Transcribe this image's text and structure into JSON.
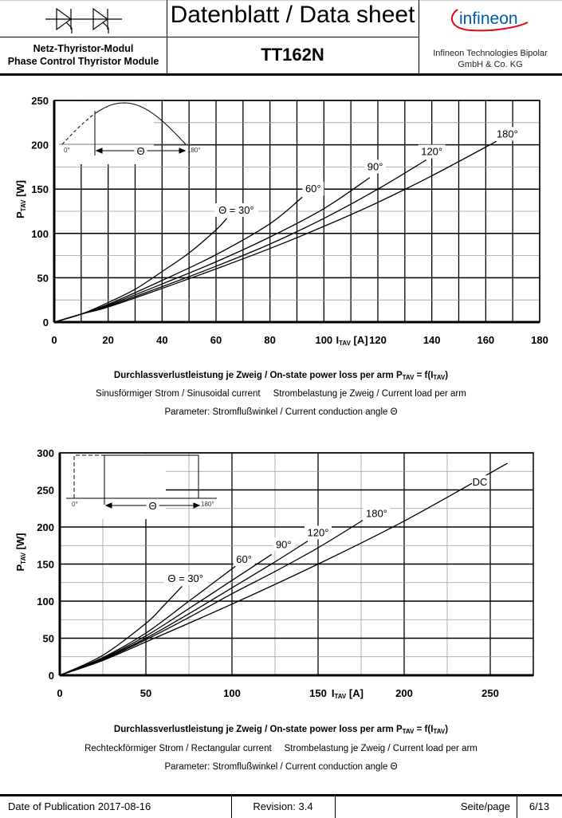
{
  "header": {
    "title": "Datenblatt / Data sheet",
    "subtitle_de": "Netz-Thyristor-Modul",
    "subtitle_en": "Phase Control Thyristor Module",
    "part_number": "TT162N",
    "company_line1": "Infineon Technologies Bipolar",
    "company_line2": "GmbH & Co. KG",
    "logo_text": "infineon",
    "logo_color": "#005ba8",
    "logo_swoosh_color": "#e30613",
    "symbol_icon": "dual-thyristor-symbol"
  },
  "chart_data": [
    {
      "type": "line",
      "title": "",
      "xlabel": {
        "main": "I",
        "sub": "TAV",
        "unit": " [A]"
      },
      "ylabel": {
        "main": "P",
        "sub": "TAV",
        "unit": " [W]"
      },
      "xlim": [
        0,
        180
      ],
      "ylim": [
        0,
        250
      ],
      "x_ticks": [
        "0",
        "20",
        "40",
        "60",
        "80",
        "100",
        "120",
        "140",
        "160",
        "180"
      ],
      "y_ticks": [
        "0",
        "50",
        "100",
        "150",
        "200",
        "250"
      ],
      "grid": true,
      "inset": {
        "waveform": "half-sine",
        "start_label": "0°",
        "end_label": "180°",
        "angle_label": "Θ"
      },
      "series": [
        {
          "name": "Θ = 30°",
          "points": [
            [
              0,
              0
            ],
            [
              10,
              9
            ],
            [
              20,
              22
            ],
            [
              30,
              37
            ],
            [
              40,
              57
            ],
            [
              50,
              78
            ],
            [
              60,
              104
            ],
            [
              64,
              117
            ]
          ]
        },
        {
          "name": "60°",
          "points": [
            [
              0,
              0
            ],
            [
              10,
              9
            ],
            [
              20,
              20
            ],
            [
              40,
              47
            ],
            [
              60,
              76
            ],
            [
              80,
              111
            ],
            [
              92,
              141
            ]
          ]
        },
        {
          "name": "90°",
          "points": [
            [
              0,
              0
            ],
            [
              10,
              9
            ],
            [
              20,
              19
            ],
            [
              40,
              43
            ],
            [
              60,
              68
            ],
            [
              80,
              96
            ],
            [
              100,
              128
            ],
            [
              117,
              163
            ]
          ]
        },
        {
          "name": "120°",
          "points": [
            [
              0,
              0
            ],
            [
              10,
              9
            ],
            [
              20,
              18
            ],
            [
              40,
              40
            ],
            [
              60,
              63
            ],
            [
              80,
              88
            ],
            [
              100,
              117
            ],
            [
              120,
              150
            ],
            [
              138,
              183
            ]
          ]
        },
        {
          "name": "180°",
          "points": [
            [
              0,
              0
            ],
            [
              10,
              9
            ],
            [
              20,
              17
            ],
            [
              40,
              38
            ],
            [
              50,
              49
            ],
            [
              60,
              60
            ],
            [
              80,
              83
            ],
            [
              100,
              108
            ],
            [
              120,
              135
            ],
            [
              140,
              165
            ],
            [
              164,
              204
            ]
          ]
        }
      ],
      "caption": {
        "line1_a": "Durchlassverlustleistung je Zweig / On-state power loss per arm P",
        "line1_sub1": "TAV",
        "line1_b": " = f(I",
        "line1_sub2": "TAV",
        "line1_c": ")",
        "line2_a": "Sinusförmiger Strom / Sinusoidal current",
        "line2_b": "Strombelastung je Zweig / Current load per arm",
        "line3": "Parameter: Stromflußwinkel / Current conduction angle Θ"
      }
    },
    {
      "type": "line",
      "title": "",
      "xlabel": {
        "main": "I",
        "sub": "TAV",
        "unit": " [A]"
      },
      "ylabel": {
        "main": "P",
        "sub": "TAV",
        "unit": " [W]"
      },
      "xlim": [
        0,
        275
      ],
      "ylim": [
        0,
        300
      ],
      "x_ticks": [
        "0",
        "50",
        "100",
        "150",
        "200",
        "250"
      ],
      "y_ticks": [
        "0",
        "50",
        "100",
        "150",
        "200",
        "250",
        "300"
      ],
      "grid": true,
      "inset": {
        "waveform": "rectangular",
        "start_label": "0°",
        "end_label": "180°",
        "angle_label": "Θ"
      },
      "series": [
        {
          "name": "Θ = 30°",
          "points": [
            [
              0,
              0
            ],
            [
              25,
              27
            ],
            [
              50,
              70
            ],
            [
              60,
              93
            ],
            [
              71,
              120
            ]
          ]
        },
        {
          "name": "60°",
          "points": [
            [
              0,
              0
            ],
            [
              25,
              24
            ],
            [
              50,
              57
            ],
            [
              75,
              100
            ],
            [
              102,
              147
            ]
          ]
        },
        {
          "name": "90°",
          "points": [
            [
              0,
              0
            ],
            [
              25,
              23
            ],
            [
              50,
              53
            ],
            [
              75,
              90
            ],
            [
              100,
              128
            ],
            [
              123,
              163
            ]
          ]
        },
        {
          "name": "120°",
          "points": [
            [
              0,
              0
            ],
            [
              25,
              22
            ],
            [
              50,
              50
            ],
            [
              75,
              83
            ],
            [
              100,
              118
            ],
            [
              125,
              153
            ],
            [
              144,
              181
            ]
          ]
        },
        {
          "name": "180°",
          "points": [
            [
              0,
              0
            ],
            [
              25,
              21
            ],
            [
              50,
              48
            ],
            [
              75,
              78
            ],
            [
              100,
              110
            ],
            [
              125,
              140
            ],
            [
              150,
              172
            ],
            [
              176,
              209
            ]
          ]
        },
        {
          "name": "DC",
          "points": [
            [
              0,
              0
            ],
            [
              25,
              20
            ],
            [
              50,
              45
            ],
            [
              100,
              96
            ],
            [
              150,
              150
            ],
            [
              200,
              208
            ],
            [
              260,
              286
            ]
          ]
        }
      ],
      "caption": {
        "line1_a": "Durchlassverlustleistung je Zweig / On-state power loss per arm P",
        "line1_sub1": "TAV",
        "line1_b": " = f(I",
        "line1_sub2": "TAV",
        "line1_c": ")",
        "line2_a": "Rechteckförmiger Strom / Rectangular current",
        "line2_b": "Strombelastung je Zweig / Current load per arm",
        "line3": "Parameter: Stromflußwinkel / Current conduction angle Θ"
      }
    }
  ],
  "footer": {
    "date": "Date of Publication 2017-08-16",
    "revision": "Revision: 3.4",
    "page_label": "Seite/page",
    "page": "6/13"
  }
}
